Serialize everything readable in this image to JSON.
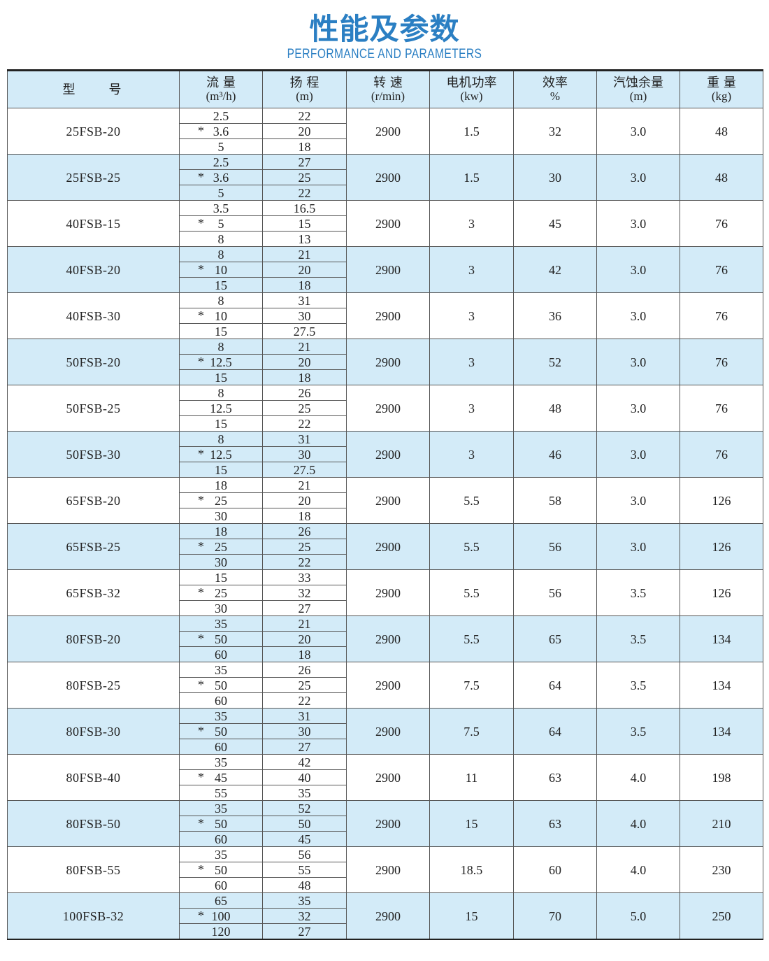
{
  "header": {
    "title": "性能及参数",
    "subtitle": "PERFORMANCE AND PARAMETERS"
  },
  "table": {
    "columns": [
      {
        "label": "型　　号",
        "unit": ""
      },
      {
        "label": "流 量",
        "unit": "(m³/h)"
      },
      {
        "label": "扬 程",
        "unit": "(m)"
      },
      {
        "label": "转 速",
        "unit": "(r/min)"
      },
      {
        "label": "电机功率",
        "unit": "(kw)"
      },
      {
        "label": "效率",
        "unit": "%"
      },
      {
        "label": "汽蚀余量",
        "unit": "(m)"
      },
      {
        "label": "重 量",
        "unit": "(kg)"
      }
    ],
    "rows": [
      {
        "model": "25FSB-20",
        "flow": [
          "2.5",
          "3.6",
          "5"
        ],
        "head": [
          "22",
          "20",
          "18"
        ],
        "rated": 1,
        "speed": "2900",
        "power": "1.5",
        "eff": "32",
        "npsh": "3.0",
        "weight": "48"
      },
      {
        "model": "25FSB-25",
        "flow": [
          "2.5",
          "3.6",
          "5"
        ],
        "head": [
          "27",
          "25",
          "22"
        ],
        "rated": 1,
        "speed": "2900",
        "power": "1.5",
        "eff": "30",
        "npsh": "3.0",
        "weight": "48"
      },
      {
        "model": "40FSB-15",
        "flow": [
          "3.5",
          "5",
          "8"
        ],
        "head": [
          "16.5",
          "15",
          "13"
        ],
        "rated": 1,
        "speed": "2900",
        "power": "3",
        "eff": "45",
        "npsh": "3.0",
        "weight": "76"
      },
      {
        "model": "40FSB-20",
        "flow": [
          "8",
          "10",
          "15"
        ],
        "head": [
          "21",
          "20",
          "18"
        ],
        "rated": 1,
        "speed": "2900",
        "power": "3",
        "eff": "42",
        "npsh": "3.0",
        "weight": "76"
      },
      {
        "model": "40FSB-30",
        "flow": [
          "8",
          "10",
          "15"
        ],
        "head": [
          "31",
          "30",
          "27.5"
        ],
        "rated": 1,
        "speed": "2900",
        "power": "3",
        "eff": "36",
        "npsh": "3.0",
        "weight": "76"
      },
      {
        "model": "50FSB-20",
        "flow": [
          "8",
          "12.5",
          "15"
        ],
        "head": [
          "21",
          "20",
          "18"
        ],
        "rated": 1,
        "speed": "2900",
        "power": "3",
        "eff": "52",
        "npsh": "3.0",
        "weight": "76"
      },
      {
        "model": "50FSB-25",
        "flow": [
          "8",
          "12.5",
          "15"
        ],
        "head": [
          "26",
          "25",
          "22"
        ],
        "rated": null,
        "speed": "2900",
        "power": "3",
        "eff": "48",
        "npsh": "3.0",
        "weight": "76"
      },
      {
        "model": "50FSB-30",
        "flow": [
          "8",
          "12.5",
          "15"
        ],
        "head": [
          "31",
          "30",
          "27.5"
        ],
        "rated": 1,
        "speed": "2900",
        "power": "3",
        "eff": "46",
        "npsh": "3.0",
        "weight": "76"
      },
      {
        "model": "65FSB-20",
        "flow": [
          "18",
          "25",
          "30"
        ],
        "head": [
          "21",
          "20",
          "18"
        ],
        "rated": 1,
        "speed": "2900",
        "power": "5.5",
        "eff": "58",
        "npsh": "3.0",
        "weight": "126"
      },
      {
        "model": "65FSB-25",
        "flow": [
          "18",
          "25",
          "30"
        ],
        "head": [
          "26",
          "25",
          "22"
        ],
        "rated": 1,
        "speed": "2900",
        "power": "5.5",
        "eff": "56",
        "npsh": "3.0",
        "weight": "126"
      },
      {
        "model": "65FSB-32",
        "flow": [
          "15",
          "25",
          "30"
        ],
        "head": [
          "33",
          "32",
          "27"
        ],
        "rated": 1,
        "speed": "2900",
        "power": "5.5",
        "eff": "56",
        "npsh": "3.5",
        "weight": "126"
      },
      {
        "model": "80FSB-20",
        "flow": [
          "35",
          "50",
          "60"
        ],
        "head": [
          "21",
          "20",
          "18"
        ],
        "rated": 1,
        "speed": "2900",
        "power": "5.5",
        "eff": "65",
        "npsh": "3.5",
        "weight": "134"
      },
      {
        "model": "80FSB-25",
        "flow": [
          "35",
          "50",
          "60"
        ],
        "head": [
          "26",
          "25",
          "22"
        ],
        "rated": 1,
        "speed": "2900",
        "power": "7.5",
        "eff": "64",
        "npsh": "3.5",
        "weight": "134"
      },
      {
        "model": "80FSB-30",
        "flow": [
          "35",
          "50",
          "60"
        ],
        "head": [
          "31",
          "30",
          "27"
        ],
        "rated": 1,
        "speed": "2900",
        "power": "7.5",
        "eff": "64",
        "npsh": "3.5",
        "weight": "134"
      },
      {
        "model": "80FSB-40",
        "flow": [
          "35",
          "45",
          "55"
        ],
        "head": [
          "42",
          "40",
          "35"
        ],
        "rated": 1,
        "speed": "2900",
        "power": "11",
        "eff": "63",
        "npsh": "4.0",
        "weight": "198"
      },
      {
        "model": "80FSB-50",
        "flow": [
          "35",
          "50",
          "60"
        ],
        "head": [
          "52",
          "50",
          "45"
        ],
        "rated": 1,
        "speed": "2900",
        "power": "15",
        "eff": "63",
        "npsh": "4.0",
        "weight": "210"
      },
      {
        "model": "80FSB-55",
        "flow": [
          "35",
          "50",
          "60"
        ],
        "head": [
          "56",
          "55",
          "48"
        ],
        "rated": 1,
        "speed": "2900",
        "power": "18.5",
        "eff": "60",
        "npsh": "4.0",
        "weight": "230"
      },
      {
        "model": "100FSB-32",
        "flow": [
          "65",
          "100",
          "120"
        ],
        "head": [
          "35",
          "32",
          "27"
        ],
        "rated": 1,
        "speed": "2900",
        "power": "15",
        "eff": "70",
        "npsh": "5.0",
        "weight": "250"
      }
    ],
    "rated_mark": "*",
    "colors": {
      "accent": "#2b7fc3",
      "row_alt": "#d3ebf8"
    }
  }
}
